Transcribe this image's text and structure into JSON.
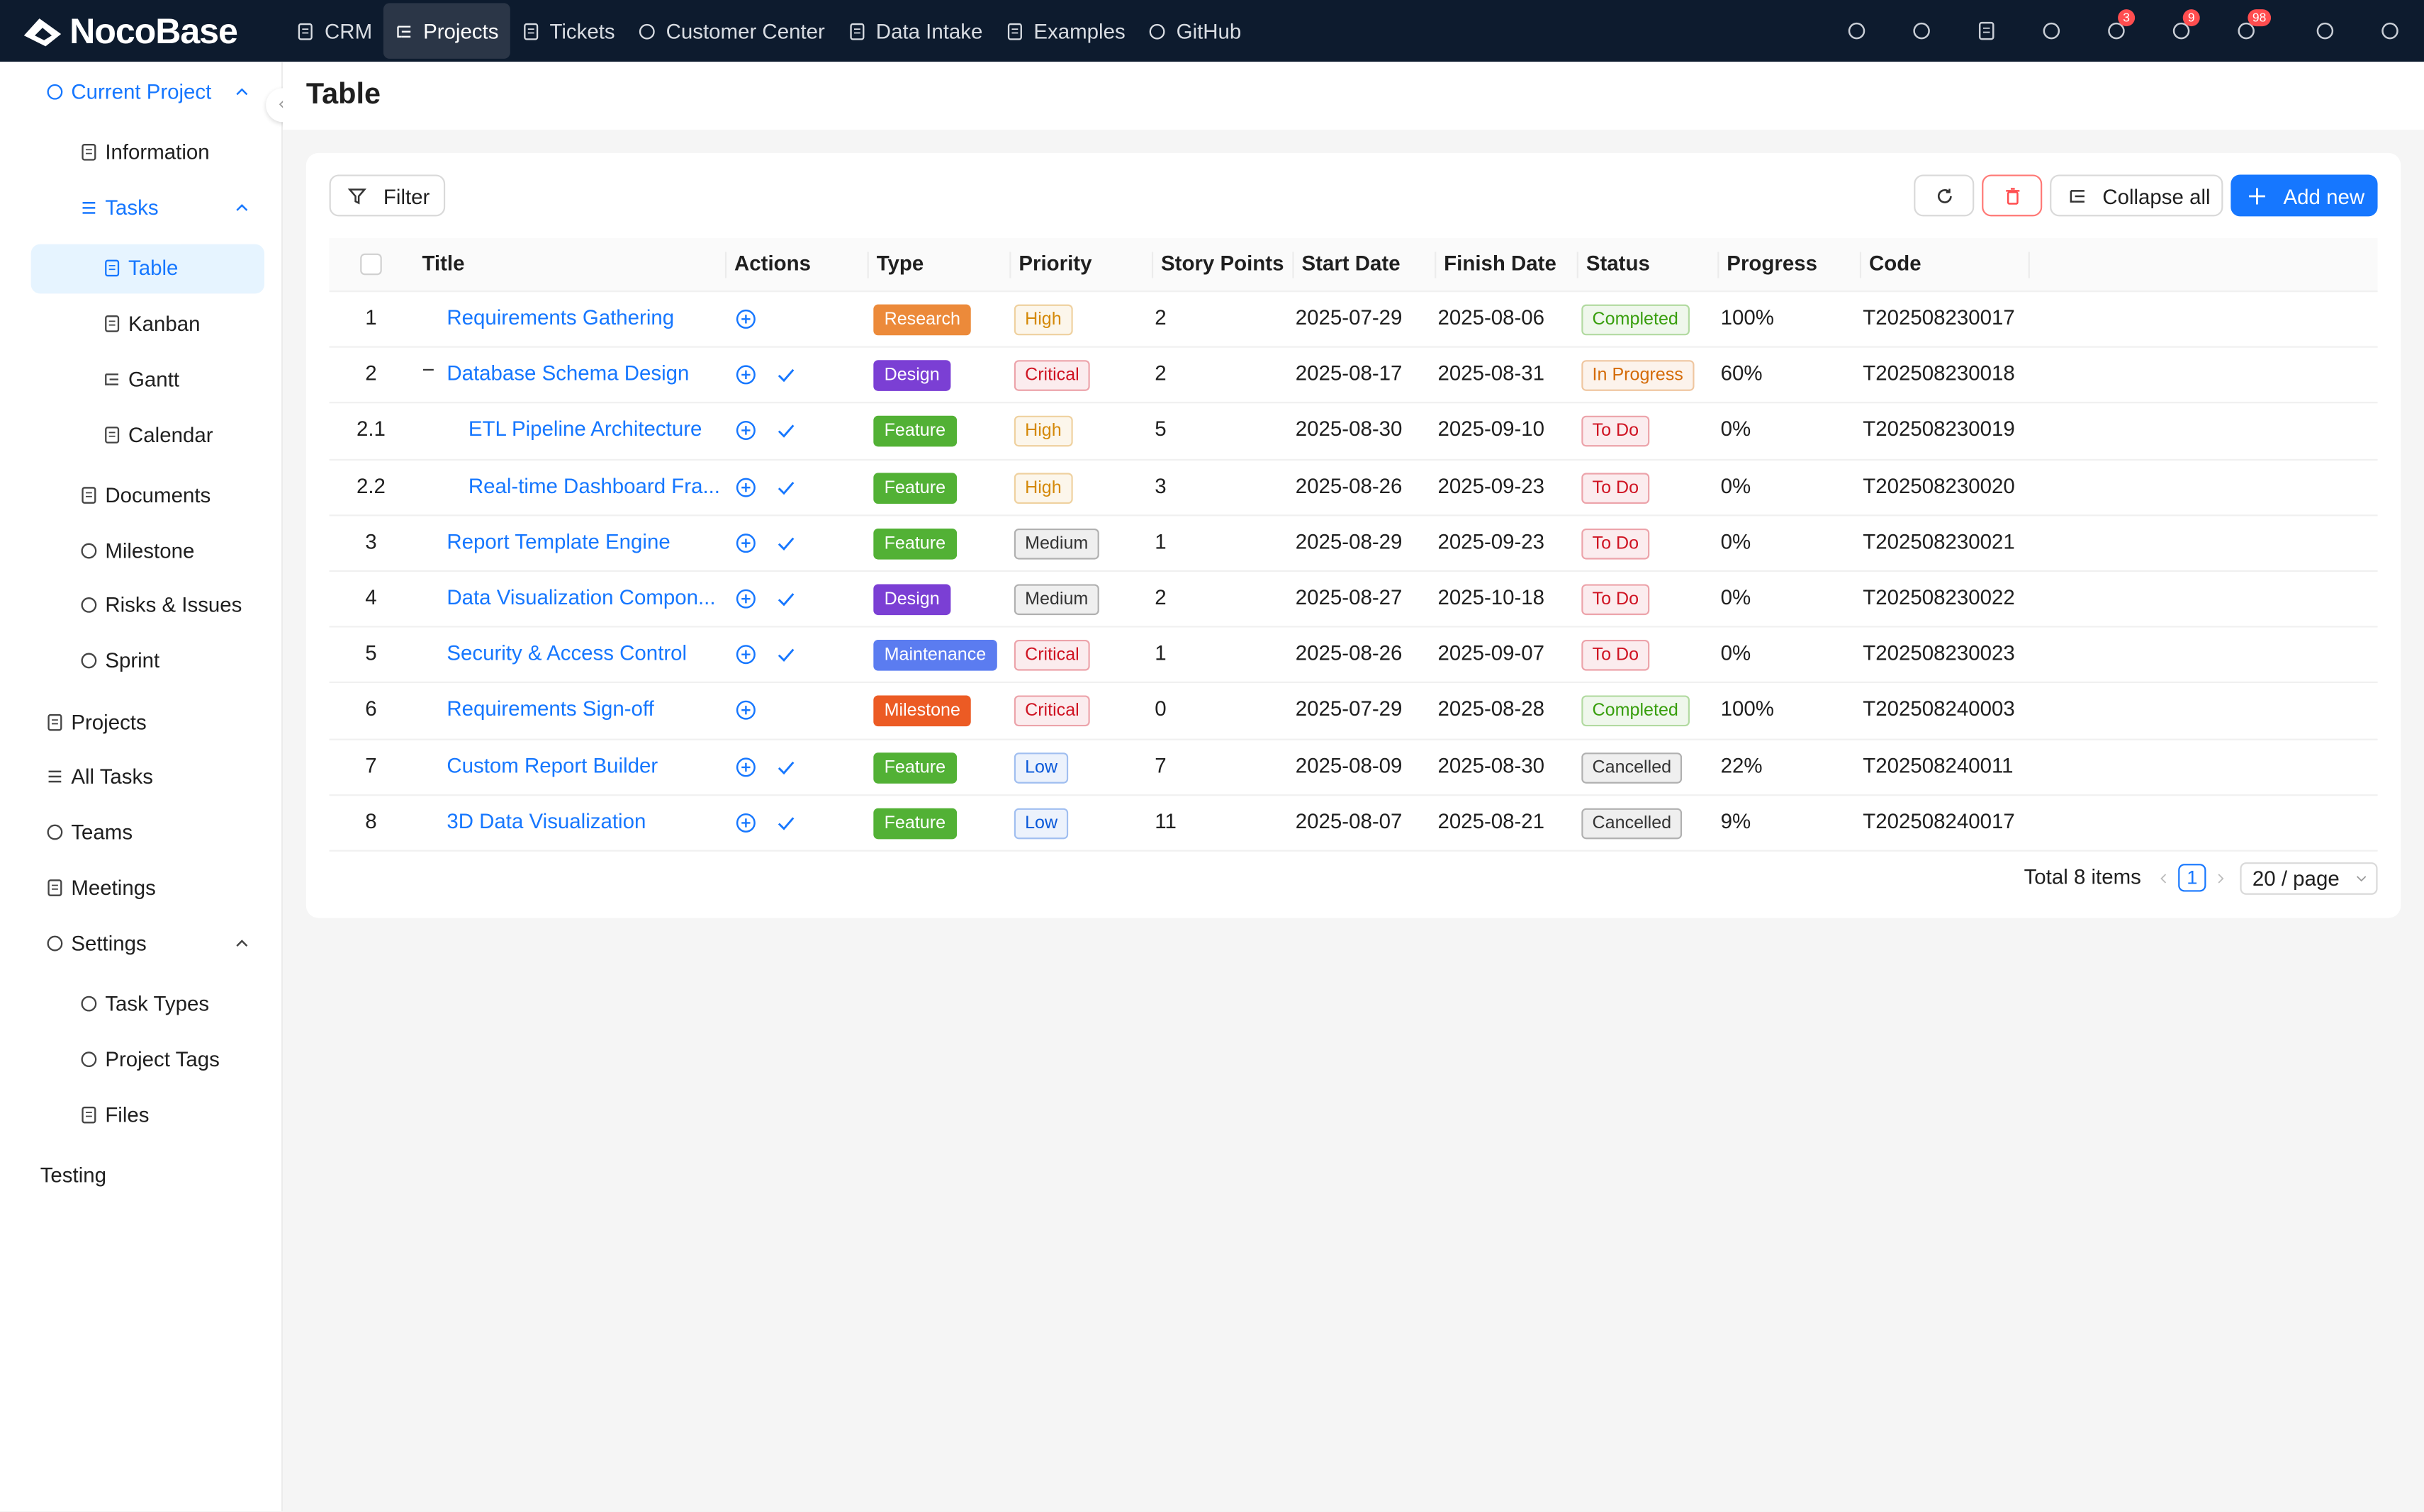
{
  "header": {
    "logo": "NocoBase",
    "nav": [
      "CRM",
      "Projects",
      "Tickets",
      "Customer Center",
      "Data Intake",
      "Examples",
      "GitHub"
    ],
    "active_nav": 1,
    "badges": [
      "3",
      "9",
      "98"
    ]
  },
  "sidebar": {
    "items": [
      {
        "label": "Current Project",
        "level": 0,
        "state": "open"
      },
      {
        "label": "Information",
        "level": 1
      },
      {
        "label": "Tasks",
        "level": 1,
        "state": "open"
      },
      {
        "label": "Table",
        "level": 2,
        "state": "selected"
      },
      {
        "label": "Kanban",
        "level": 2
      },
      {
        "label": "Gantt",
        "level": 2
      },
      {
        "label": "Calendar",
        "level": 2
      },
      {
        "label": "Documents",
        "level": 1
      },
      {
        "label": "Milestone",
        "level": 1
      },
      {
        "label": "Risks & Issues",
        "level": 1
      },
      {
        "label": "Sprint",
        "level": 1
      },
      {
        "label": "Projects",
        "level": 0
      },
      {
        "label": "All Tasks",
        "level": 0
      },
      {
        "label": "Teams",
        "level": 0
      },
      {
        "label": "Meetings",
        "level": 0
      },
      {
        "label": "Settings",
        "level": 0,
        "state": "collapsible"
      },
      {
        "label": "Task Types",
        "level": 1
      },
      {
        "label": "Project Tags",
        "level": 1
      },
      {
        "label": "Files",
        "level": 1
      },
      {
        "label": "Testing",
        "level": -1
      }
    ]
  },
  "page": {
    "title": "Table"
  },
  "toolbar": {
    "filter": "Filter",
    "collapse": "Collapse all",
    "add": "Add new"
  },
  "table": {
    "columns": [
      "Title",
      "Actions",
      "Type",
      "Priority",
      "Story Points",
      "Start Date",
      "Finish Date",
      "Status",
      "Progress",
      "Code"
    ],
    "rows": [
      {
        "no": "1",
        "title": "Requirements Gathering",
        "check": false,
        "type": {
          "text": "Research",
          "color": "#ec8a3a"
        },
        "priority": {
          "text": "High",
          "color": "#d48806"
        },
        "points": "2",
        "start": "2025-07-29",
        "finish": "2025-08-06",
        "status": {
          "text": "Completed",
          "color": "#389e0d"
        },
        "progress": "100%",
        "code": "T202508230017"
      },
      {
        "no": "2",
        "title": "Database Schema Design",
        "check": true,
        "type": {
          "text": "Design",
          "color": "#7b3fd4"
        },
        "priority": {
          "text": "Critical",
          "color": "#cf1322"
        },
        "points": "2",
        "start": "2025-08-17",
        "finish": "2025-08-31",
        "status": {
          "text": "In Progress",
          "color": "#d46b08"
        },
        "progress": "60%",
        "code": "T202508230018"
      },
      {
        "no": "2.1",
        "title": "ETL Pipeline Architecture",
        "check": true,
        "type": {
          "text": "Feature",
          "color": "#52b135"
        },
        "priority": {
          "text": "High",
          "color": "#d48806"
        },
        "points": "5",
        "start": "2025-08-30",
        "finish": "2025-09-10",
        "status": {
          "text": "To Do",
          "color": "#cf1322"
        },
        "progress": "0%",
        "code": "T202508230019"
      },
      {
        "no": "2.2",
        "title": "Real-time Dashboard Fra...",
        "check": true,
        "type": {
          "text": "Feature",
          "color": "#52b135"
        },
        "priority": {
          "text": "High",
          "color": "#d48806"
        },
        "points": "3",
        "start": "2025-08-26",
        "finish": "2025-09-23",
        "status": {
          "text": "To Do",
          "color": "#cf1322"
        },
        "progress": "0%",
        "code": "T202508230020"
      },
      {
        "no": "3",
        "title": "Report Template Engine",
        "check": true,
        "type": {
          "text": "Feature",
          "color": "#52b135"
        },
        "priority": {
          "text": "Medium",
          "color": "#333333"
        },
        "points": "1",
        "start": "2025-08-29",
        "finish": "2025-09-23",
        "status": {
          "text": "To Do",
          "color": "#cf1322"
        },
        "progress": "0%",
        "code": "T202508230021"
      },
      {
        "no": "4",
        "title": "Data Visualization Compon...",
        "check": true,
        "type": {
          "text": "Design",
          "color": "#7b3fd4"
        },
        "priority": {
          "text": "Medium",
          "color": "#333333"
        },
        "points": "2",
        "start": "2025-08-27",
        "finish": "2025-10-18",
        "status": {
          "text": "To Do",
          "color": "#cf1322"
        },
        "progress": "0%",
        "code": "T202508230022"
      },
      {
        "no": "5",
        "title": "Security & Access Control",
        "check": true,
        "type": {
          "text": "Maintenance",
          "color": "#5b7cf0"
        },
        "priority": {
          "text": "Critical",
          "color": "#cf1322"
        },
        "points": "1",
        "start": "2025-08-26",
        "finish": "2025-09-07",
        "status": {
          "text": "To Do",
          "color": "#cf1322"
        },
        "progress": "0%",
        "code": "T202508230023"
      },
      {
        "no": "6",
        "title": "Requirements Sign-off",
        "check": false,
        "type": {
          "text": "Milestone",
          "color": "#ec5b24"
        },
        "priority": {
          "text": "Critical",
          "color": "#cf1322"
        },
        "points": "0",
        "start": "2025-07-29",
        "finish": "2025-08-28",
        "status": {
          "text": "Completed",
          "color": "#389e0d"
        },
        "progress": "100%",
        "code": "T202508240003"
      },
      {
        "no": "7",
        "title": "Custom Report Builder",
        "check": true,
        "type": {
          "text": "Feature",
          "color": "#52b135"
        },
        "priority": {
          "text": "Low",
          "color": "#0958d9"
        },
        "points": "7",
        "start": "2025-08-09",
        "finish": "2025-08-30",
        "status": {
          "text": "Cancelled",
          "color": "#333333"
        },
        "progress": "22%",
        "code": "T202508240011"
      },
      {
        "no": "8",
        "title": "3D Data Visualization",
        "check": true,
        "type": {
          "text": "Feature",
          "color": "#52b135"
        },
        "priority": {
          "text": "Low",
          "color": "#0958d9"
        },
        "points": "11",
        "start": "2025-08-07",
        "finish": "2025-08-21",
        "status": {
          "text": "Cancelled",
          "color": "#333333"
        },
        "progress": "9%",
        "code": "T202508240017"
      }
    ]
  },
  "pagination": {
    "total": "Total 8 items",
    "page": "1",
    "size": "20 / page"
  }
}
